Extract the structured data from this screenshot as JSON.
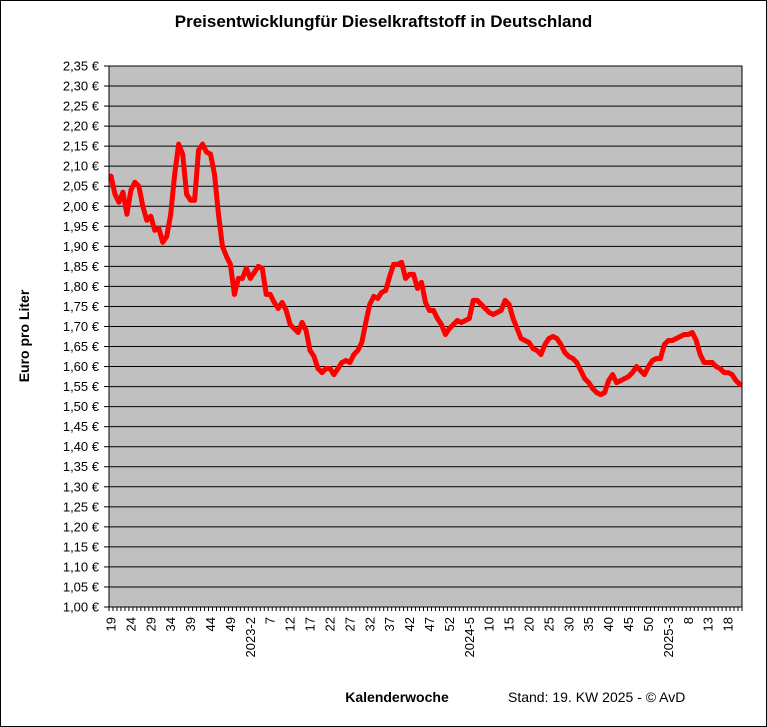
{
  "chart_data": {
    "type": "line",
    "title": "Preisentwicklungfür Dieselkraftstoff in Deutschland",
    "xlabel": "Kalenderwoche",
    "ylabel": "Euro pro Liter",
    "footnote": "Stand: 19. KW 2025 - © AvD",
    "ylim": [
      1.0,
      2.35
    ],
    "ytick_step": 0.05,
    "ytick_suffix": " €",
    "grid": "horizontal",
    "plot_background": "#c0c0c0",
    "line_color": "#ff0000",
    "x_tick_labels": [
      "19",
      "24",
      "29",
      "34",
      "39",
      "44",
      "49",
      "2023-2",
      "7",
      "12",
      "17",
      "22",
      "27",
      "32",
      "37",
      "42",
      "47",
      "52",
      "2024-5",
      "10",
      "15",
      "20",
      "25",
      "30",
      "35",
      "40",
      "45",
      "50",
      "2025-3",
      "8",
      "13",
      "18"
    ],
    "x_tick_every": 5,
    "series": [
      {
        "values": [
          2.075,
          2.03,
          2.01,
          2.035,
          1.98,
          2.04,
          2.06,
          2.05,
          2.0,
          1.965,
          1.975,
          1.94,
          1.945,
          1.91,
          1.925,
          1.98,
          2.08,
          2.155,
          2.13,
          2.03,
          2.015,
          2.015,
          2.14,
          2.155,
          2.135,
          2.13,
          2.08,
          1.98,
          1.9,
          1.875,
          1.855,
          1.78,
          1.82,
          1.82,
          1.845,
          1.82,
          1.835,
          1.85,
          1.845,
          1.78,
          1.78,
          1.76,
          1.745,
          1.76,
          1.74,
          1.705,
          1.695,
          1.685,
          1.71,
          1.69,
          1.64,
          1.625,
          1.595,
          1.585,
          1.595,
          1.595,
          1.58,
          1.595,
          1.61,
          1.615,
          1.61,
          1.63,
          1.64,
          1.66,
          1.71,
          1.755,
          1.775,
          1.77,
          1.785,
          1.79,
          1.825,
          1.855,
          1.855,
          1.86,
          1.82,
          1.83,
          1.83,
          1.795,
          1.81,
          1.76,
          1.74,
          1.74,
          1.72,
          1.705,
          1.68,
          1.695,
          1.705,
          1.715,
          1.71,
          1.715,
          1.72,
          1.765,
          1.765,
          1.755,
          1.745,
          1.735,
          1.73,
          1.735,
          1.74,
          1.765,
          1.755,
          1.72,
          1.695,
          1.67,
          1.665,
          1.66,
          1.645,
          1.64,
          1.63,
          1.655,
          1.67,
          1.675,
          1.67,
          1.655,
          1.635,
          1.625,
          1.62,
          1.61,
          1.59,
          1.57,
          1.56,
          1.545,
          1.535,
          1.53,
          1.535,
          1.565,
          1.58,
          1.56,
          1.565,
          1.57,
          1.575,
          1.585,
          1.6,
          1.59,
          1.58,
          1.6,
          1.615,
          1.62,
          1.62,
          1.655,
          1.665,
          1.665,
          1.67,
          1.675,
          1.68,
          1.68,
          1.685,
          1.665,
          1.63,
          1.61,
          1.61,
          1.61,
          1.6,
          1.595,
          1.585,
          1.585,
          1.58,
          1.565,
          1.555
        ]
      }
    ]
  }
}
